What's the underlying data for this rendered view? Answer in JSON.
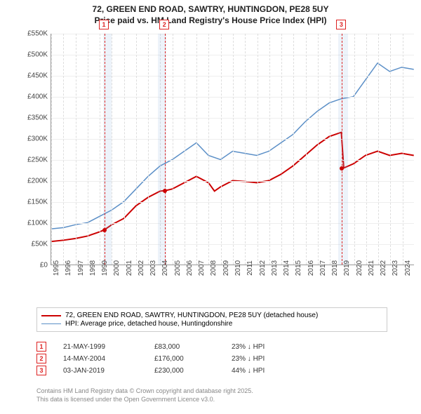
{
  "title": {
    "line1": "72, GREEN END ROAD, SAWTRY, HUNTINGDON, PE28 5UY",
    "line2": "Price paid vs. HM Land Registry's House Price Index (HPI)"
  },
  "chart": {
    "type": "line",
    "background_color": "#ffffff",
    "grid_color": "#eeeeee",
    "axis_color": "#999999",
    "x_range": [
      1995,
      2025
    ],
    "y_range": [
      0,
      550
    ],
    "y_ticks": [
      0,
      50,
      100,
      150,
      200,
      250,
      300,
      350,
      400,
      450,
      500,
      550
    ],
    "y_tick_prefix": "£",
    "y_tick_suffix": "K",
    "x_ticks": [
      1995,
      1996,
      1997,
      1998,
      1999,
      2000,
      2001,
      2002,
      2003,
      2004,
      2005,
      2006,
      2007,
      2008,
      2009,
      2010,
      2011,
      2012,
      2013,
      2014,
      2015,
      2016,
      2017,
      2018,
      2019,
      2020,
      2021,
      2022,
      2023,
      2024
    ],
    "shaded_bands": [
      {
        "from": 1999.3,
        "to": 2000.0,
        "color": "rgba(135,176,223,0.15)"
      },
      {
        "from": 2003.8,
        "to": 2004.5,
        "color": "rgba(135,176,223,0.15)"
      },
      {
        "from": 2018.7,
        "to": 2019.5,
        "color": "rgba(135,176,223,0.15)"
      }
    ],
    "markers": [
      {
        "id": "1",
        "x": 1999.4,
        "dot_y": 83,
        "dot_color": "#cc0000"
      },
      {
        "id": "2",
        "x": 2004.4,
        "dot_y": 176,
        "dot_color": "#cc0000"
      },
      {
        "id": "3",
        "x": 2019.0,
        "dot_y": 230,
        "dot_color": "#cc0000"
      }
    ],
    "series": [
      {
        "name": "price_paid",
        "color": "#cc0000",
        "width": 2,
        "points": [
          [
            1995,
            55
          ],
          [
            1996,
            58
          ],
          [
            1997,
            62
          ],
          [
            1998,
            68
          ],
          [
            1999,
            78
          ],
          [
            1999.4,
            83
          ],
          [
            2000,
            95
          ],
          [
            2001,
            110
          ],
          [
            2002,
            140
          ],
          [
            2003,
            160
          ],
          [
            2004,
            175
          ],
          [
            2004.4,
            176
          ],
          [
            2005,
            180
          ],
          [
            2006,
            195
          ],
          [
            2007,
            210
          ],
          [
            2008,
            195
          ],
          [
            2008.5,
            175
          ],
          [
            2009,
            185
          ],
          [
            2010,
            200
          ],
          [
            2011,
            198
          ],
          [
            2012,
            195
          ],
          [
            2013,
            200
          ],
          [
            2014,
            215
          ],
          [
            2015,
            235
          ],
          [
            2016,
            260
          ],
          [
            2017,
            285
          ],
          [
            2018,
            305
          ],
          [
            2019,
            315
          ],
          [
            2019.2,
            230
          ],
          [
            2020,
            240
          ],
          [
            2021,
            260
          ],
          [
            2022,
            270
          ],
          [
            2023,
            260
          ],
          [
            2024,
            265
          ],
          [
            2025,
            260
          ]
        ]
      },
      {
        "name": "hpi",
        "color": "#5b8fc7",
        "width": 1.5,
        "points": [
          [
            1995,
            85
          ],
          [
            1996,
            88
          ],
          [
            1997,
            95
          ],
          [
            1998,
            100
          ],
          [
            1999,
            115
          ],
          [
            2000,
            130
          ],
          [
            2001,
            150
          ],
          [
            2002,
            180
          ],
          [
            2003,
            210
          ],
          [
            2004,
            235
          ],
          [
            2005,
            250
          ],
          [
            2006,
            270
          ],
          [
            2007,
            290
          ],
          [
            2008,
            260
          ],
          [
            2009,
            250
          ],
          [
            2010,
            270
          ],
          [
            2011,
            265
          ],
          [
            2012,
            260
          ],
          [
            2013,
            270
          ],
          [
            2014,
            290
          ],
          [
            2015,
            310
          ],
          [
            2016,
            340
          ],
          [
            2017,
            365
          ],
          [
            2018,
            385
          ],
          [
            2019,
            395
          ],
          [
            2020,
            400
          ],
          [
            2021,
            440
          ],
          [
            2022,
            480
          ],
          [
            2023,
            460
          ],
          [
            2024,
            470
          ],
          [
            2025,
            465
          ]
        ]
      }
    ]
  },
  "legend": {
    "items": [
      {
        "color": "#cc0000",
        "width": 2,
        "label": "72, GREEN END ROAD, SAWTRY, HUNTINGDON, PE28 5UY (detached house)"
      },
      {
        "color": "#5b8fc7",
        "width": 1.5,
        "label": "HPI: Average price, detached house, Huntingdonshire"
      }
    ]
  },
  "events": [
    {
      "id": "1",
      "date": "21-MAY-1999",
      "price": "£83,000",
      "delta": "23% ↓ HPI"
    },
    {
      "id": "2",
      "date": "14-MAY-2004",
      "price": "£176,000",
      "delta": "23% ↓ HPI"
    },
    {
      "id": "3",
      "date": "03-JAN-2019",
      "price": "£230,000",
      "delta": "44% ↓ HPI"
    }
  ],
  "footer": {
    "line1": "Contains HM Land Registry data © Crown copyright and database right 2025.",
    "line2": "This data is licensed under the Open Government Licence v3.0."
  }
}
